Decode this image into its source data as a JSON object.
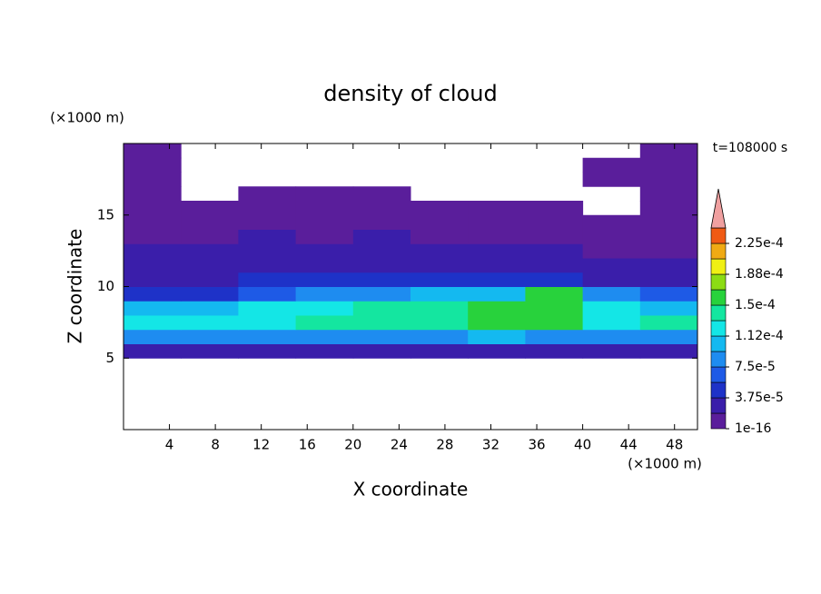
{
  "chart_data": {
    "type": "contour",
    "title": "density of cloud",
    "x_label": "X coordinate",
    "y_label": "Z coordinate",
    "x_unit": "(×1000 m)",
    "y_unit": "(×1000 m)",
    "time_label": "t=108000 s",
    "xlim": [
      0,
      50
    ],
    "ylim": [
      0,
      20
    ],
    "xticks": [
      4,
      8,
      12,
      16,
      20,
      24,
      28,
      32,
      36,
      40,
      44,
      48
    ],
    "yticks": [
      5,
      10,
      15
    ],
    "x": [
      2.5,
      7.5,
      12.5,
      17.5,
      22.5,
      27.5,
      32.5,
      37.5,
      42.5,
      47.5
    ],
    "z": [
      0.5,
      1.5,
      2.5,
      3.5,
      4.5,
      5.5,
      6.5,
      7.5,
      8.5,
      9.5,
      10.5,
      11.5,
      12.5,
      13.5,
      14.5,
      15.5,
      16.5,
      17.5,
      18.5,
      19.5
    ],
    "field": [
      [
        null,
        null,
        null,
        null,
        null,
        null,
        null,
        null,
        null,
        null
      ],
      [
        null,
        null,
        null,
        null,
        null,
        null,
        null,
        null,
        null,
        null
      ],
      [
        null,
        null,
        null,
        null,
        null,
        null,
        null,
        null,
        null,
        null
      ],
      [
        null,
        null,
        null,
        null,
        null,
        null,
        null,
        null,
        null,
        null
      ],
      [
        null,
        null,
        null,
        null,
        null,
        null,
        null,
        null,
        null,
        null
      ],
      [
        3e-05,
        3e-05,
        3.5e-05,
        3e-05,
        3e-05,
        3e-05,
        3e-05,
        3e-05,
        3e-05,
        3e-05
      ],
      [
        8e-05,
        8.5e-05,
        9e-05,
        9e-05,
        9e-05,
        9e-05,
        0.0001,
        9e-05,
        8.5e-05,
        8e-05
      ],
      [
        0.00012,
        0.000115,
        0.00013,
        0.00014,
        0.000135,
        0.00014,
        0.00015,
        0.00016,
        0.00013,
        0.00014
      ],
      [
        0.000105,
        0.0001,
        0.000115,
        0.00013,
        0.000135,
        0.00014,
        0.000155,
        0.000165,
        0.000125,
        0.000105
      ],
      [
        4.5e-05,
        5e-05,
        6e-05,
        8e-05,
        9e-05,
        9.5e-05,
        0.00011,
        0.00015,
        8e-05,
        6e-05
      ],
      [
        3e-05,
        3.5e-05,
        4e-05,
        4.5e-05,
        5e-05,
        4.5e-05,
        5e-05,
        5.5e-05,
        3.5e-05,
        3e-05
      ],
      [
        2.5e-05,
        3e-05,
        3.5e-05,
        3e-05,
        3.5e-05,
        3e-05,
        3e-05,
        3e-05,
        2e-05,
        2e-05
      ],
      [
        2e-05,
        2.5e-05,
        2.5e-05,
        2e-05,
        2.5e-05,
        2e-05,
        2e-05,
        2e-05,
        1.5e-05,
        1.5e-05
      ],
      [
        1.5e-05,
        1.5e-05,
        2e-05,
        1.5e-05,
        2e-05,
        1.5e-05,
        1.5e-05,
        1.5e-05,
        1e-05,
        1e-05
      ],
      [
        1e-05,
        1e-05,
        1e-05,
        1e-05,
        1e-05,
        1e-05,
        1e-05,
        1e-05,
        5e-06,
        5e-06
      ],
      [
        5e-06,
        5e-06,
        5e-06,
        5e-06,
        5e-06,
        5e-06,
        5e-06,
        5e-06,
        null,
        5e-06
      ],
      [
        5e-06,
        null,
        5e-06,
        5e-06,
        5e-06,
        null,
        null,
        null,
        null,
        5e-06
      ],
      [
        5e-06,
        null,
        null,
        null,
        null,
        null,
        null,
        null,
        5e-06,
        5e-06
      ],
      [
        5e-06,
        null,
        null,
        null,
        null,
        null,
        null,
        null,
        5e-06,
        5e-06
      ],
      [
        5e-06,
        null,
        null,
        null,
        null,
        null,
        null,
        null,
        null,
        5e-06
      ]
    ],
    "levels": [
      1e-16,
      1.875e-05,
      3.75e-05,
      5.625e-05,
      7.5e-05,
      9.375e-05,
      0.0001125,
      0.00013125,
      0.00015,
      0.00016875,
      0.0001875,
      0.00020625,
      0.000225,
      0.00024375
    ],
    "colors": [
      "#5a1e9b",
      "#3a1eaa",
      "#1e32c8",
      "#1e5ae6",
      "#1e8cf0",
      "#14b9f0",
      "#14e6e6",
      "#14e6a0",
      "#28d23c",
      "#8cdc14",
      "#f0f014",
      "#f0aa14",
      "#f05a14"
    ],
    "extend_color": "#f0a0a0",
    "colorbar_ticks": [
      {
        "value": 1e-16,
        "label": "1e-16"
      },
      {
        "value": 3.75e-05,
        "label": "3.75e-5"
      },
      {
        "value": 7.5e-05,
        "label": "7.5e-5"
      },
      {
        "value": 0.0001125,
        "label": "1.12e-4"
      },
      {
        "value": 0.00015,
        "label": "1.5e-4"
      },
      {
        "value": 0.0001875,
        "label": "1.88e-4"
      },
      {
        "value": 0.000225,
        "label": "2.25e-4"
      }
    ]
  }
}
